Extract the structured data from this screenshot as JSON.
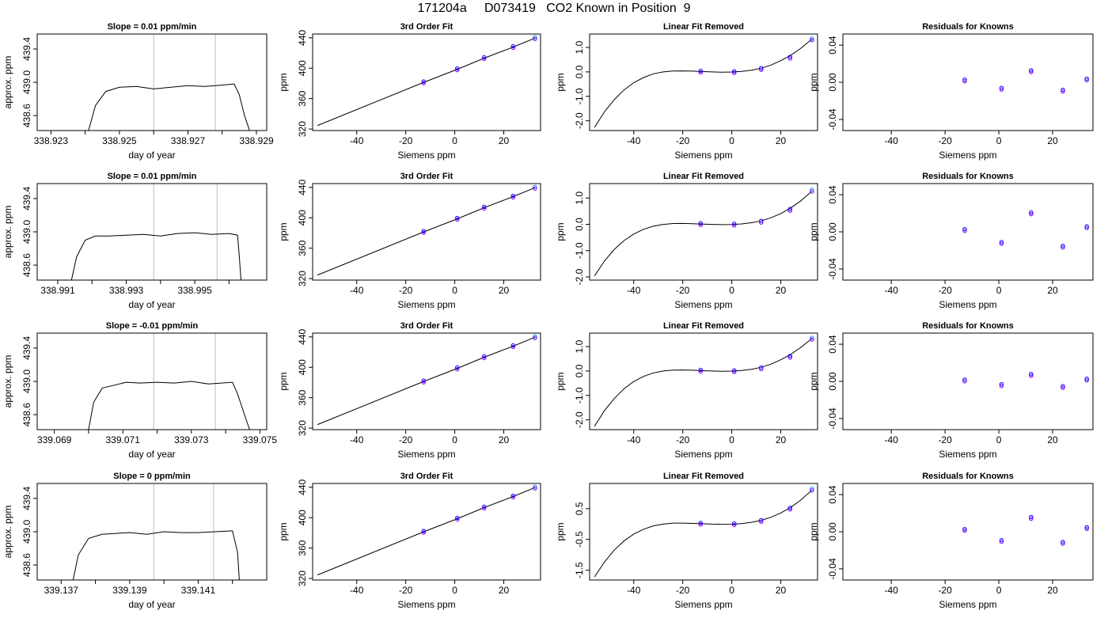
{
  "figure_title": "171204a     D073419   CO2 Known in Position  9",
  "colors": {
    "axis": "#000000",
    "line": "#000000",
    "vertical_marker": "#bebebe",
    "point_blue": "#0000ff",
    "point_purple": "#8000ff",
    "point_light_blue": "#1e90ff",
    "background": "#ffffff"
  },
  "chart_data": [
    {
      "type": "line",
      "title": "Slope =  0.01  ppm/min",
      "xlabel": "day of year",
      "ylabel": "approx. ppm",
      "x_ticks": [
        "338.923",
        "338.925",
        "338.927",
        "338.929"
      ],
      "y_ticks": [
        "438.6",
        "439.0",
        "439.4"
      ],
      "xlim": [
        338.9226,
        338.9293
      ],
      "ylim": [
        438.42,
        439.58
      ],
      "vertical_markers": [
        338.926,
        338.9278
      ],
      "series": [
        {
          "x": [
            338.9241,
            338.9243,
            338.9246,
            338.925,
            338.9255,
            338.926,
            338.9265,
            338.927,
            338.9275,
            338.9278,
            338.92835,
            338.9285,
            338.92865,
            338.9288
          ],
          "values": [
            438.42,
            438.72,
            438.89,
            438.94,
            438.95,
            438.92,
            438.94,
            438.96,
            438.95,
            438.96,
            438.98,
            438.85,
            438.6,
            438.42
          ]
        }
      ]
    },
    {
      "type": "line",
      "title": "3rd Order Fit",
      "xlabel": "Siemens ppm",
      "ylabel": "ppm",
      "x_ticks": [
        "-40",
        "-20",
        "0",
        "20"
      ],
      "y_ticks": [
        "320",
        "360",
        "400",
        "440"
      ],
      "xlim": [
        -58,
        35
      ],
      "ylim": [
        318,
        445
      ],
      "series": [
        {
          "x": [
            -56,
            -12.7,
            1,
            12,
            23.8,
            32.7
          ],
          "values": [
            324.7,
            381.4,
            398.6,
            413.3,
            427.8,
            439.6
          ]
        }
      ],
      "points": {
        "x": [
          -12.7,
          1,
          12,
          23.8,
          32.7
        ],
        "y": [
          381.4,
          398.6,
          413.3,
          427.8,
          439.6
        ]
      }
    },
    {
      "type": "line",
      "title": "Linear Fit Removed",
      "xlabel": "Siemens ppm",
      "ylabel": "ppm",
      "x_ticks": [
        "-40",
        "-20",
        "0",
        "20"
      ],
      "y_ticks": [
        "-2.0",
        "-1.0",
        "0.0",
        "1.0"
      ],
      "xlim": [
        -58,
        35
      ],
      "ylim": [
        -2.4,
        1.55
      ],
      "series": [
        {
          "x": [
            -56,
            -52,
            -48,
            -44,
            -40,
            -36,
            -32,
            -28,
            -24,
            -20,
            -16,
            -12,
            -8,
            -4,
            0,
            4,
            8,
            12,
            16,
            20,
            24,
            28,
            32,
            32.7
          ],
          "values": [
            -2.27,
            -1.64,
            -1.14,
            -0.74,
            -0.44,
            -0.23,
            -0.08,
            -0.002,
            0.035,
            0.04,
            0.03,
            0.013,
            -0.002,
            -0.009,
            -0.004,
            0.02,
            0.07,
            0.15,
            0.28,
            0.46,
            0.68,
            0.95,
            1.28,
            1.33
          ]
        }
      ],
      "points": {
        "x": [
          -12.7,
          1,
          12,
          23.8,
          32.7
        ],
        "y": [
          0.01,
          -0.008,
          0.12,
          0.58,
          1.33
        ]
      }
    },
    {
      "type": "scatter",
      "title": "Residuals for Knowns",
      "xlabel": "Siemens ppm",
      "ylabel": "ppm",
      "x_ticks": [
        "-40",
        "-20",
        "0",
        "20"
      ],
      "y_ticks": [
        "-0.04",
        "0.00",
        "0.04"
      ],
      "xlim": [
        -58,
        35
      ],
      "ylim": [
        -0.052,
        0.052
      ],
      "points": {
        "x": [
          -12.7,
          1,
          12,
          23.8,
          32.7
        ],
        "y": [
          0.002,
          -0.007,
          0.012,
          -0.009,
          0.003
        ]
      }
    },
    {
      "type": "line",
      "title": "Slope =  0.01  ppm/min",
      "xlabel": "day of year",
      "ylabel": "approx. ppm",
      "x_ticks": [
        "338.991",
        "338.993",
        "338.995"
      ],
      "y_ticks": [
        "438.6",
        "439.0",
        "439.4"
      ],
      "xlim": [
        338.9904,
        338.9971
      ],
      "ylim": [
        438.42,
        439.58
      ],
      "vertical_markers": [
        338.9938,
        338.99565
      ],
      "series": [
        {
          "x": [
            338.9914,
            338.99155,
            338.9918,
            338.9921,
            338.9925,
            338.993,
            338.9935,
            338.994,
            338.9945,
            338.995,
            338.9955,
            338.996,
            338.99625,
            338.9963,
            338.99635
          ],
          "values": [
            438.42,
            438.7,
            438.9,
            438.95,
            438.95,
            438.96,
            438.97,
            438.95,
            438.98,
            438.99,
            438.97,
            438.98,
            438.96,
            438.7,
            438.42
          ]
        }
      ]
    },
    {
      "type": "line",
      "title": "3rd Order Fit",
      "xlabel": "Siemens ppm",
      "ylabel": "ppm",
      "x_ticks": [
        "-40",
        "-20",
        "0",
        "20"
      ],
      "y_ticks": [
        "320",
        "360",
        "400",
        "440"
      ],
      "xlim": [
        -58,
        35
      ],
      "ylim": [
        318,
        445
      ],
      "series": [
        {
          "x": [
            -56,
            -12.7,
            1,
            12,
            23.8,
            32.7
          ],
          "values": [
            324.7,
            381.4,
            398.6,
            413.3,
            427.8,
            439.6
          ]
        }
      ],
      "points": {
        "x": [
          -12.7,
          1,
          12,
          23.8,
          32.7
        ],
        "y": [
          381.4,
          398.6,
          413.3,
          427.8,
          439.6
        ]
      }
    },
    {
      "type": "line",
      "title": "Linear Fit Removed",
      "xlabel": "Siemens ppm",
      "ylabel": "ppm",
      "x_ticks": [
        "-40",
        "-20",
        "0",
        "20"
      ],
      "y_ticks": [
        "-2.0",
        "-1.0",
        "0.0",
        "1.0"
      ],
      "xlim": [
        -58,
        35
      ],
      "ylim": [
        -2.12,
        1.55
      ],
      "series": [
        {
          "x": [
            -56,
            -52,
            -48,
            -44,
            -40,
            -36,
            -32,
            -28,
            -24,
            -20,
            -16,
            -12,
            -8,
            -4,
            0,
            4,
            8,
            12,
            16,
            20,
            24,
            28,
            32,
            32.7
          ],
          "values": [
            -1.96,
            -1.4,
            -0.96,
            -0.62,
            -0.37,
            -0.19,
            -0.07,
            -0.002,
            0.03,
            0.035,
            0.025,
            0.01,
            -0.003,
            -0.01,
            -0.006,
            0.015,
            0.06,
            0.13,
            0.25,
            0.41,
            0.62,
            0.88,
            1.2,
            1.26
          ]
        }
      ],
      "points": {
        "x": [
          -12.7,
          1,
          12,
          23.8,
          32.7
        ],
        "y": [
          0.01,
          -0.01,
          0.1,
          0.55,
          1.28
        ]
      }
    },
    {
      "type": "scatter",
      "title": "Residuals for Knowns",
      "xlabel": "Siemens ppm",
      "ylabel": "ppm",
      "x_ticks": [
        "-40",
        "-20",
        "0",
        "20"
      ],
      "y_ticks": [
        "-0.04",
        "0.00",
        "0.04"
      ],
      "xlim": [
        -58,
        35
      ],
      "ylim": [
        -0.052,
        0.052
      ],
      "points": {
        "x": [
          -12.7,
          1,
          12,
          23.8,
          32.7
        ],
        "y": [
          0.002,
          -0.012,
          0.02,
          -0.016,
          0.005
        ]
      }
    },
    {
      "type": "line",
      "title": "Slope =  -0.01  ppm/min",
      "xlabel": "day of year",
      "ylabel": "approx. ppm",
      "x_ticks": [
        "339.069",
        "339.071",
        "339.073",
        "339.075"
      ],
      "y_ticks": [
        "438.6",
        "439.0",
        "439.4"
      ],
      "xlim": [
        339.0685,
        339.0752
      ],
      "ylim": [
        438.42,
        439.58
      ],
      "vertical_markers": [
        339.0719,
        339.0737
      ],
      "series": [
        {
          "x": [
            339.07,
            339.07015,
            339.0704,
            339.0707,
            339.0711,
            339.0715,
            339.072,
            339.0725,
            339.073,
            339.0735,
            339.0742,
            339.07435,
            339.07455,
            339.0747
          ],
          "values": [
            438.42,
            438.75,
            438.92,
            438.95,
            438.99,
            438.98,
            438.99,
            438.98,
            439.0,
            438.97,
            438.99,
            438.85,
            438.6,
            438.42
          ]
        }
      ]
    },
    {
      "type": "line",
      "title": "3rd Order Fit",
      "xlabel": "Siemens ppm",
      "ylabel": "ppm",
      "x_ticks": [
        "-40",
        "-20",
        "0",
        "20"
      ],
      "y_ticks": [
        "320",
        "360",
        "400",
        "440"
      ],
      "xlim": [
        -58,
        35
      ],
      "ylim": [
        318,
        445
      ],
      "series": [
        {
          "x": [
            -56,
            -12.7,
            1,
            12,
            23.8,
            32.7
          ],
          "values": [
            324.7,
            381.4,
            398.6,
            413.3,
            427.8,
            439.6
          ]
        }
      ],
      "points": {
        "x": [
          -12.7,
          1,
          12,
          23.8,
          32.7
        ],
        "y": [
          381.4,
          398.6,
          413.3,
          427.8,
          439.6
        ]
      }
    },
    {
      "type": "line",
      "title": "Linear Fit Removed",
      "xlabel": "Siemens ppm",
      "ylabel": "ppm",
      "x_ticks": [
        "-40",
        "-20",
        "0",
        "20"
      ],
      "y_ticks": [
        "-2.0",
        "-1.0",
        "0.0",
        "1.0"
      ],
      "xlim": [
        -58,
        35
      ],
      "ylim": [
        -2.4,
        1.55
      ],
      "series": [
        {
          "x": [
            -56,
            -52,
            -48,
            -44,
            -40,
            -36,
            -32,
            -28,
            -24,
            -20,
            -16,
            -12,
            -8,
            -4,
            0,
            4,
            8,
            12,
            16,
            20,
            24,
            28,
            32,
            32.7
          ],
          "values": [
            -2.26,
            -1.63,
            -1.13,
            -0.73,
            -0.43,
            -0.22,
            -0.08,
            -0.002,
            0.035,
            0.04,
            0.03,
            0.013,
            -0.002,
            -0.009,
            -0.004,
            0.02,
            0.07,
            0.15,
            0.28,
            0.46,
            0.68,
            0.95,
            1.27,
            1.32
          ]
        }
      ],
      "points": {
        "x": [
          -12.7,
          1,
          12,
          23.8,
          32.7
        ],
        "y": [
          0.01,
          -0.008,
          0.11,
          0.58,
          1.32
        ]
      }
    },
    {
      "type": "scatter",
      "title": "Residuals for Knowns",
      "xlabel": "Siemens ppm",
      "ylabel": "ppm",
      "x_ticks": [
        "-40",
        "-20",
        "0",
        "20"
      ],
      "y_ticks": [
        "-0.04",
        "0.00",
        "0.04"
      ],
      "xlim": [
        -58,
        35
      ],
      "ylim": [
        -0.052,
        0.052
      ],
      "points": {
        "x": [
          -12.7,
          1,
          12,
          23.8,
          32.7
        ],
        "y": [
          0.001,
          -0.004,
          0.007,
          -0.006,
          0.002
        ]
      }
    },
    {
      "type": "line",
      "title": "Slope =  0  ppm/min",
      "xlabel": "day of year",
      "ylabel": "approx. ppm",
      "x_ticks": [
        "339.137",
        "339.139",
        "339.141"
      ],
      "y_ticks": [
        "438.6",
        "439.0",
        "439.4"
      ],
      "xlim": [
        339.1363,
        339.143
      ],
      "ylim": [
        438.42,
        439.58
      ],
      "vertical_markers": [
        339.1397,
        339.14145
      ],
      "series": [
        {
          "x": [
            339.13735,
            339.1375,
            339.1378,
            339.1382,
            339.1386,
            339.139,
            339.1395,
            339.14,
            339.1405,
            339.141,
            339.1415,
            339.142,
            339.14215,
            339.1422
          ],
          "values": [
            438.42,
            438.72,
            438.92,
            438.97,
            438.98,
            438.99,
            438.97,
            439.0,
            438.99,
            438.99,
            439.0,
            439.01,
            438.75,
            438.42
          ]
        }
      ]
    },
    {
      "type": "line",
      "title": "3rd Order Fit",
      "xlabel": "Siemens ppm",
      "ylabel": "ppm",
      "x_ticks": [
        "-40",
        "-20",
        "0",
        "20"
      ],
      "y_ticks": [
        "320",
        "360",
        "400",
        "440"
      ],
      "xlim": [
        -58,
        35
      ],
      "ylim": [
        318,
        445
      ],
      "series": [
        {
          "x": [
            -56,
            -12.7,
            1,
            12,
            23.8,
            32.7
          ],
          "values": [
            324.7,
            381.4,
            398.6,
            413.3,
            427.8,
            439.6
          ]
        }
      ],
      "points": {
        "x": [
          -12.7,
          1,
          12,
          23.8,
          32.7
        ],
        "y": [
          381.4,
          398.6,
          413.3,
          427.8,
          439.6
        ]
      }
    },
    {
      "type": "line",
      "title": "Linear Fit Removed",
      "xlabel": "Siemens ppm",
      "ylabel": "ppm",
      "x_ticks": [
        "-40",
        "-20",
        "0",
        "20"
      ],
      "y_ticks": [
        "-1.5",
        "-0.5",
        "0.5"
      ],
      "xlim": [
        -58,
        35
      ],
      "ylim": [
        -1.82,
        1.32
      ],
      "series": [
        {
          "x": [
            -56,
            -52,
            -48,
            -44,
            -40,
            -36,
            -32,
            -28,
            -24,
            -20,
            -16,
            -12,
            -8,
            -4,
            0,
            4,
            8,
            12,
            16,
            20,
            24,
            28,
            32,
            32.7
          ],
          "values": [
            -1.72,
            -1.24,
            -0.85,
            -0.55,
            -0.33,
            -0.17,
            -0.06,
            -0.002,
            0.03,
            0.03,
            0.02,
            0.01,
            -0.003,
            -0.008,
            -0.005,
            0.015,
            0.055,
            0.12,
            0.22,
            0.36,
            0.54,
            0.77,
            1.05,
            1.1
          ]
        }
      ],
      "points": {
        "x": [
          -12.7,
          1,
          12,
          23.8,
          32.7
        ],
        "y": [
          0.01,
          -0.006,
          0.1,
          0.5,
          1.12
        ]
      }
    },
    {
      "type": "scatter",
      "title": "Residuals for Knowns",
      "xlabel": "Siemens ppm",
      "ylabel": "ppm",
      "x_ticks": [
        "-40",
        "-20",
        "0",
        "20"
      ],
      "y_ticks": [
        "-0.04",
        "0.00",
        "0.04"
      ],
      "xlim": [
        -58,
        35
      ],
      "ylim": [
        -0.052,
        0.052
      ],
      "points": {
        "x": [
          -12.7,
          1,
          12,
          23.8,
          32.7
        ],
        "y": [
          0.002,
          -0.01,
          0.015,
          -0.012,
          0.004
        ]
      }
    }
  ]
}
